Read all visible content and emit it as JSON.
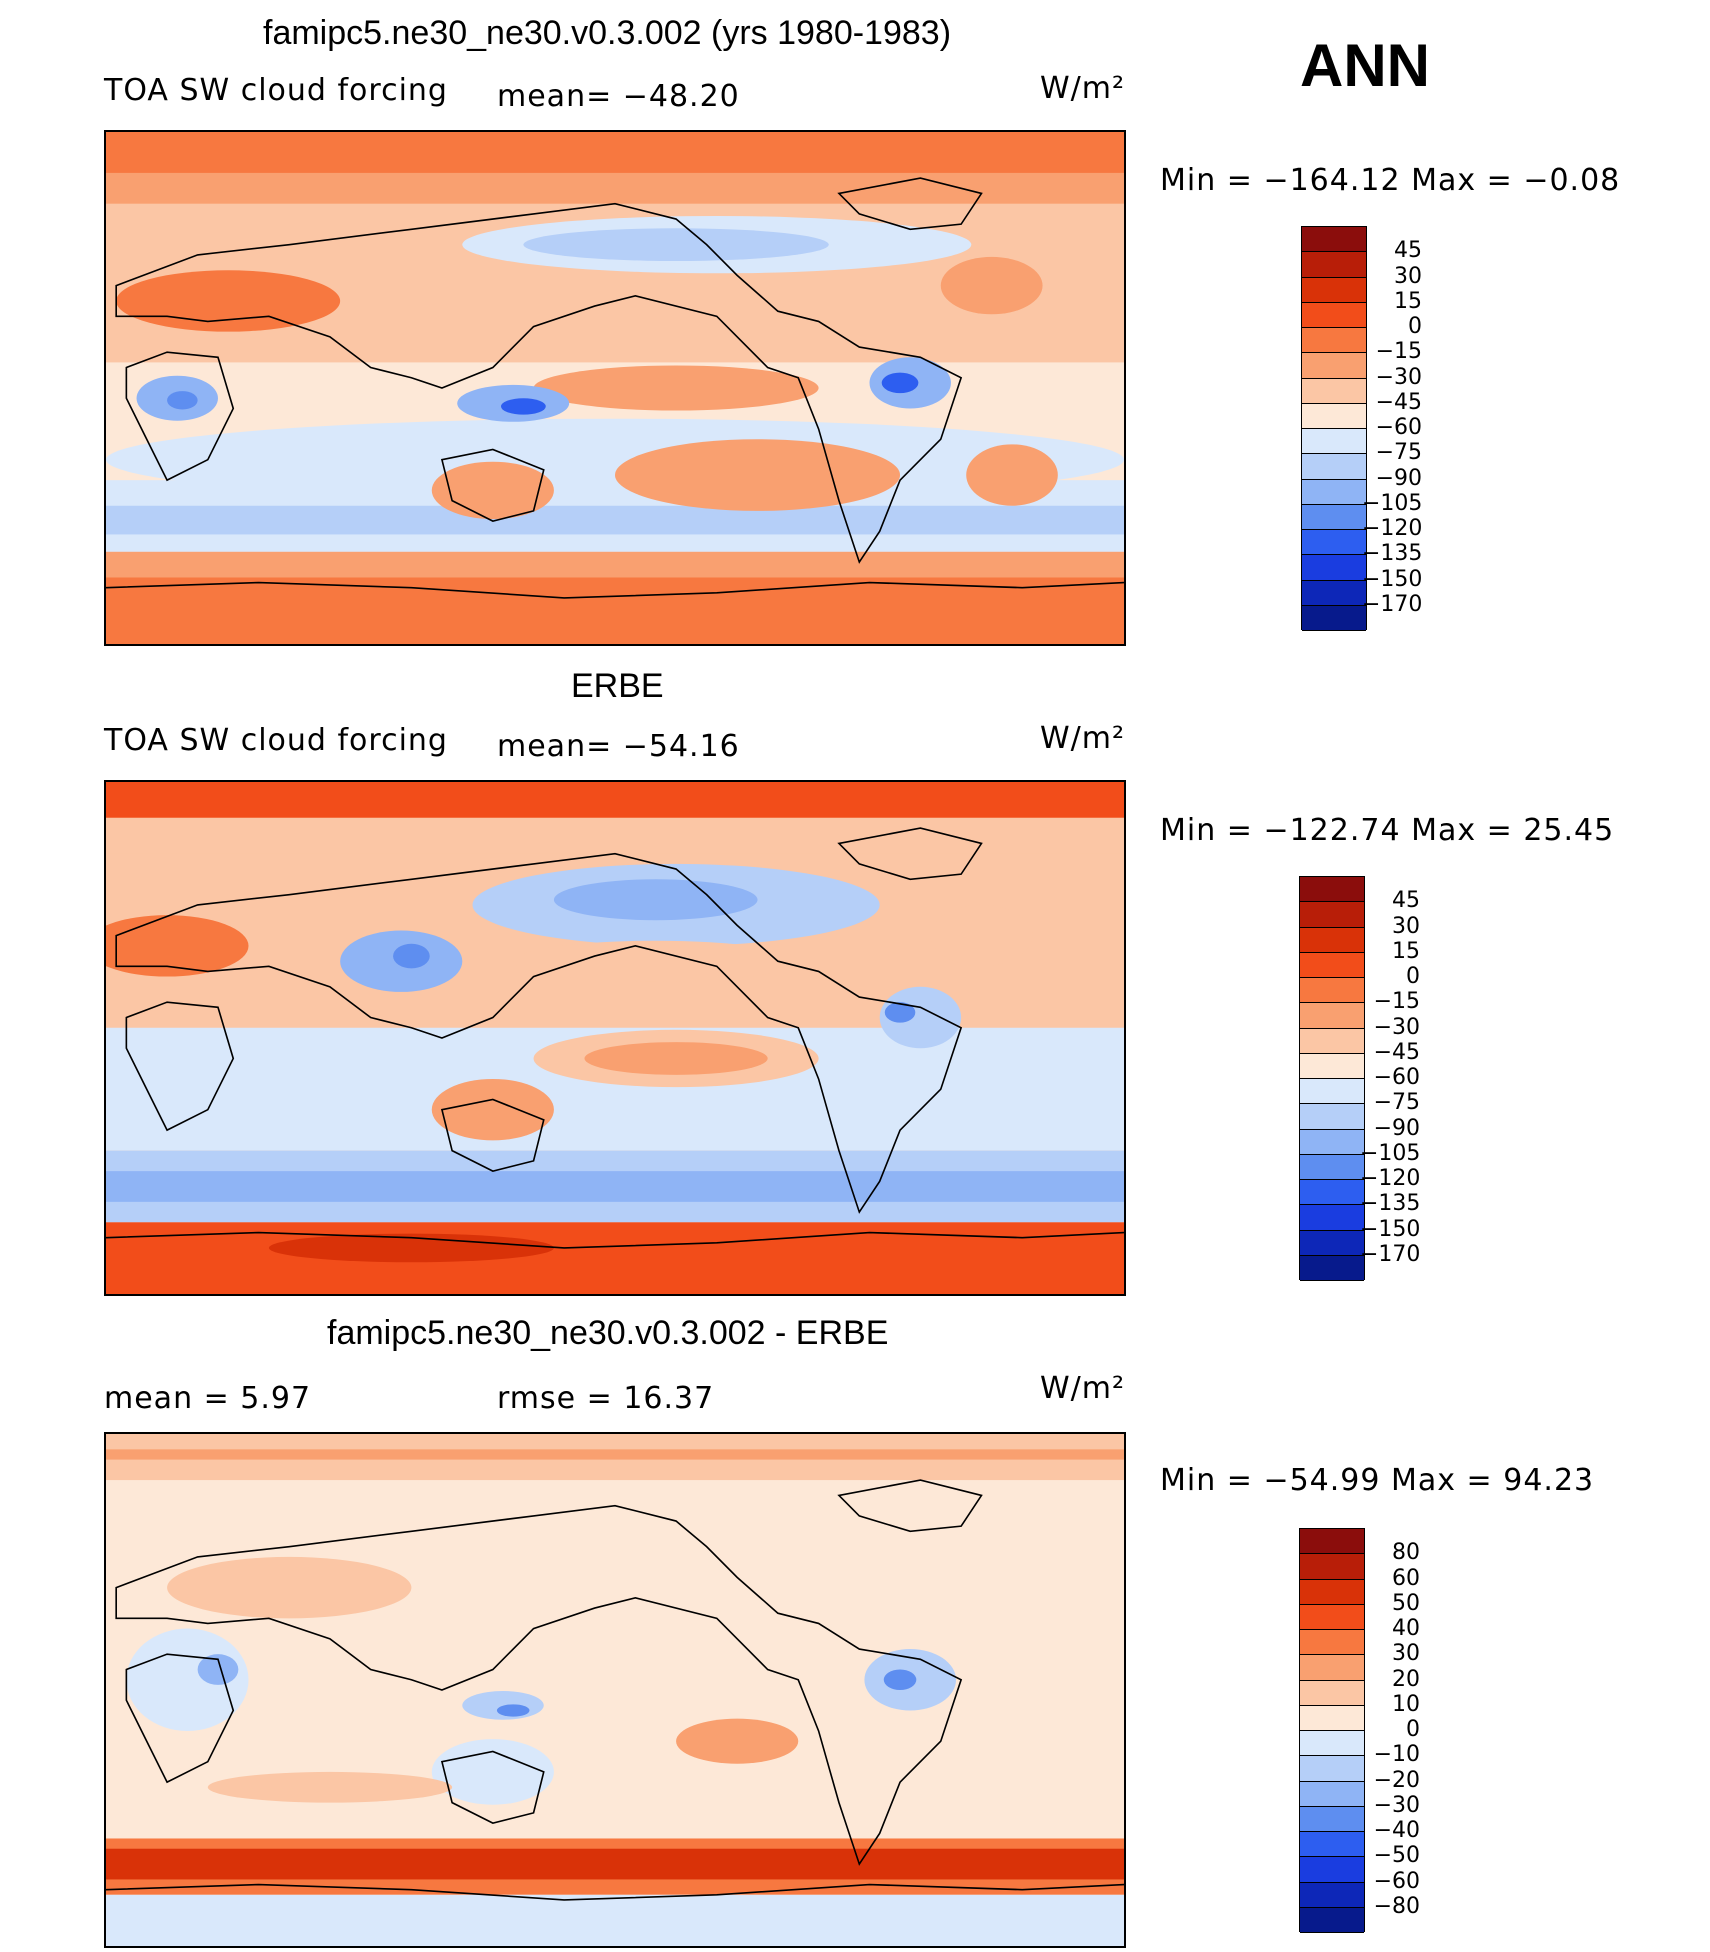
{
  "header": {
    "title": "famipc5.ne30_ne30.v0.3.002 (yrs 1980-1983)",
    "season": "ANN"
  },
  "panels": [
    {
      "id": "model",
      "subtitle": "",
      "left_label": "TOA SW cloud forcing",
      "center_label": "mean= −48.20",
      "units": "W/m²",
      "min_max": "Min  =  −164.12  Max  =    −0.08",
      "colorbar": {
        "ticks": [
          "45",
          "30",
          "15",
          "0",
          "−15",
          "−30",
          "−45",
          "−60",
          "−75",
          "−90",
          "−105",
          "−120",
          "−135",
          "−150",
          "−170"
        ],
        "colors": [
          "#8b0d0c",
          "#b81e08",
          "#d93208",
          "#f24d1a",
          "#f77840",
          "#f9a070",
          "#fbc6a5",
          "#fde8d7",
          "#d9e8fb",
          "#b5cff8",
          "#8fb4f5",
          "#5e8ef0",
          "#2d5ef0",
          "#1a3de0",
          "#0d27b8",
          "#071a8c"
        ]
      }
    },
    {
      "id": "obs",
      "subtitle": "ERBE",
      "left_label": "TOA SW cloud forcing",
      "center_label": "mean= −54.16",
      "units": "W/m²",
      "min_max": "Min  =  −122.74  Max  =    25.45",
      "colorbar": {
        "ticks": [
          "45",
          "30",
          "15",
          "0",
          "−15",
          "−30",
          "−45",
          "−60",
          "−75",
          "−90",
          "−105",
          "−120",
          "−135",
          "−150",
          "−170"
        ],
        "colors": [
          "#8b0d0c",
          "#b81e08",
          "#d93208",
          "#f24d1a",
          "#f77840",
          "#f9a070",
          "#fbc6a5",
          "#fde8d7",
          "#d9e8fb",
          "#b5cff8",
          "#8fb4f5",
          "#5e8ef0",
          "#2d5ef0",
          "#1a3de0",
          "#0d27b8",
          "#071a8c"
        ]
      }
    },
    {
      "id": "diff",
      "subtitle": "famipc5.ne30_ne30.v0.3.002 - ERBE",
      "left_label": "mean  =     5.97",
      "center_label": "rmse  =    16.37",
      "units": "W/m²",
      "min_max": "Min  =  −54.99  Max  =    94.23",
      "colorbar": {
        "ticks": [
          "80",
          "60",
          "50",
          "40",
          "30",
          "20",
          "10",
          "0",
          "−10",
          "−20",
          "−30",
          "−40",
          "−50",
          "−60",
          "−80"
        ],
        "colors": [
          "#8b0d0c",
          "#b81e08",
          "#d93208",
          "#f24d1a",
          "#f77840",
          "#f9a070",
          "#fbc6a5",
          "#fde8d7",
          "#d9e8fb",
          "#b5cff8",
          "#8fb4f5",
          "#5e8ef0",
          "#2d5ef0",
          "#1a3de0",
          "#0d27b8",
          "#071a8c"
        ]
      }
    }
  ]
}
